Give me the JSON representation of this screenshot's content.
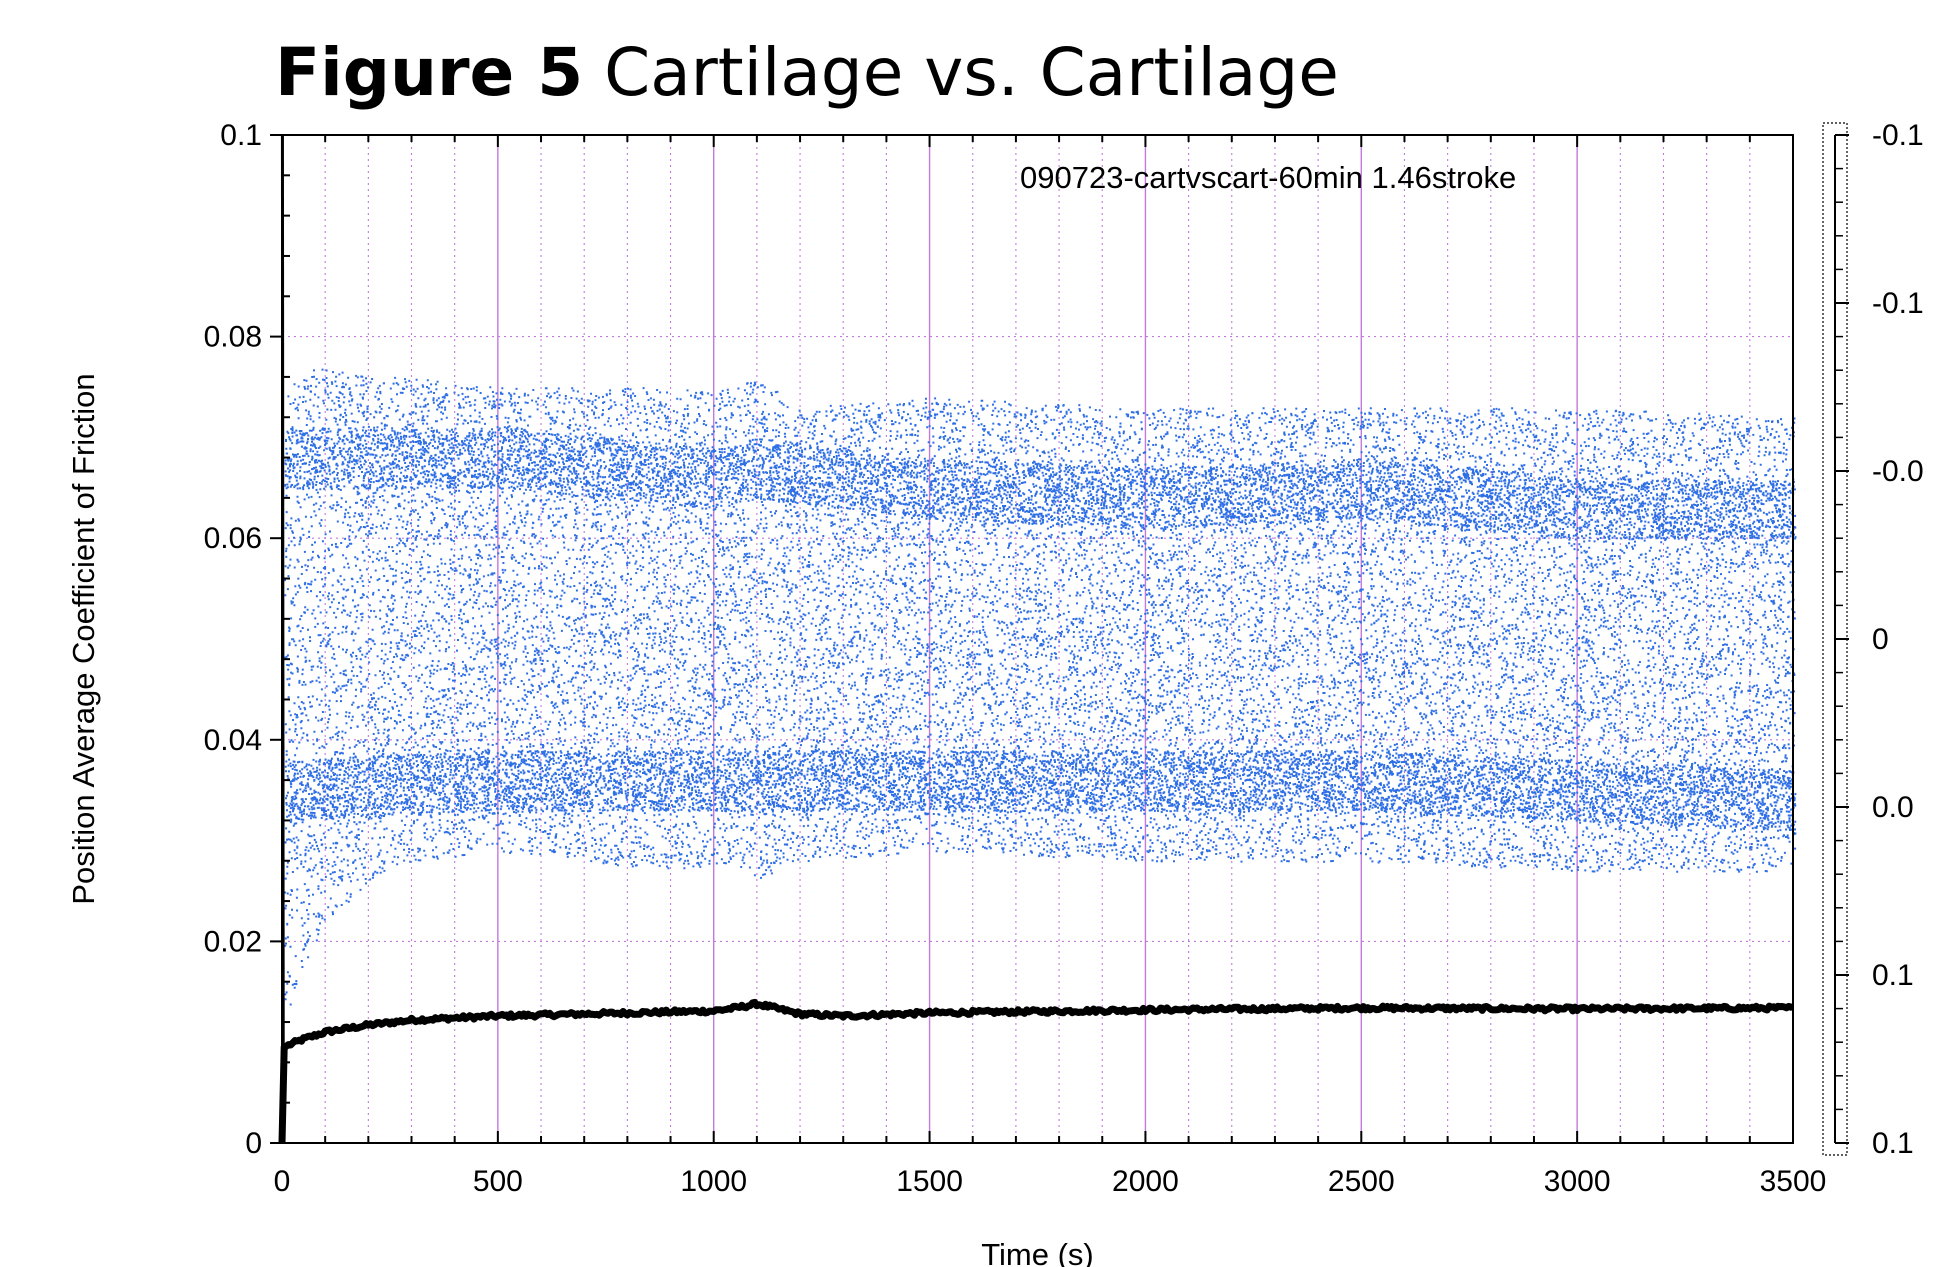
{
  "figure": {
    "label": "Figure 5",
    "title": "Cartilage vs. Cartilage"
  },
  "chart_data": {
    "type": "scatter",
    "annotation": "090723-cartvscart-60min 1.46stroke",
    "xlabel": "Time (s)",
    "ylabel": "Position Average Coefficient of Friction",
    "xlim": [
      0,
      3500
    ],
    "ylim": [
      0,
      0.1
    ],
    "x_ticks": [
      0,
      500,
      1000,
      1500,
      2000,
      2500,
      3000,
      3500
    ],
    "x_tick_labels": [
      "0",
      "500",
      "1000",
      "1500",
      "2000",
      "2500",
      "3000",
      "3500"
    ],
    "y_ticks": [
      0,
      0.02,
      0.04,
      0.06,
      0.08,
      0.1
    ],
    "y_tick_labels": [
      "0",
      "0.02",
      "0.04",
      "0.06",
      "0.08",
      "0.1"
    ],
    "right_axis_tick_labels": [
      "-0.1",
      "-0.1",
      "-0.0",
      "0",
      "0.0",
      "0.1",
      "0.1"
    ],
    "grid": true,
    "series": [
      {
        "color": "#2f6fe6",
        "x": [
          0,
          50,
          100,
          200,
          300,
          500,
          700,
          900,
          1050,
          1100,
          1200,
          1500,
          2000,
          2500,
          3000,
          3500
        ],
        "y_min": [
          0.012,
          0.018,
          0.022,
          0.026,
          0.028,
          0.029,
          0.028,
          0.027,
          0.028,
          0.026,
          0.028,
          0.029,
          0.028,
          0.028,
          0.027,
          0.027
        ],
        "y_max": [
          0.074,
          0.077,
          0.077,
          0.076,
          0.076,
          0.075,
          0.075,
          0.075,
          0.075,
          0.076,
          0.073,
          0.074,
          0.073,
          0.073,
          0.073,
          0.072
        ],
        "dense_bands": [
          {
            "x": [
              0,
              500,
              1000,
              1100,
              1500,
              2000,
              2500,
              3000,
              3500
            ],
            "y": [
              0.068,
              0.068,
              0.066,
              0.067,
              0.065,
              0.064,
              0.065,
              0.063,
              0.063
            ]
          },
          {
            "x": [
              0,
              500,
              1000,
              1100,
              1500,
              2000,
              2500,
              3000,
              3500
            ],
            "y": [
              0.035,
              0.036,
              0.036,
              0.036,
              0.036,
              0.036,
              0.036,
              0.035,
              0.034
            ]
          }
        ]
      },
      {
        "color": "#000000",
        "x": [
          0,
          5,
          20,
          50,
          100,
          200,
          300,
          500,
          700,
          900,
          1000,
          1050,
          1100,
          1150,
          1200,
          1300,
          1500,
          2000,
          2500,
          3000,
          3500
        ],
        "y": [
          0.0,
          0.0095,
          0.0098,
          0.0103,
          0.011,
          0.0117,
          0.0122,
          0.0126,
          0.0128,
          0.013,
          0.0131,
          0.0134,
          0.0138,
          0.0133,
          0.0128,
          0.0126,
          0.0129,
          0.0132,
          0.0134,
          0.0133,
          0.0134
        ]
      }
    ]
  }
}
